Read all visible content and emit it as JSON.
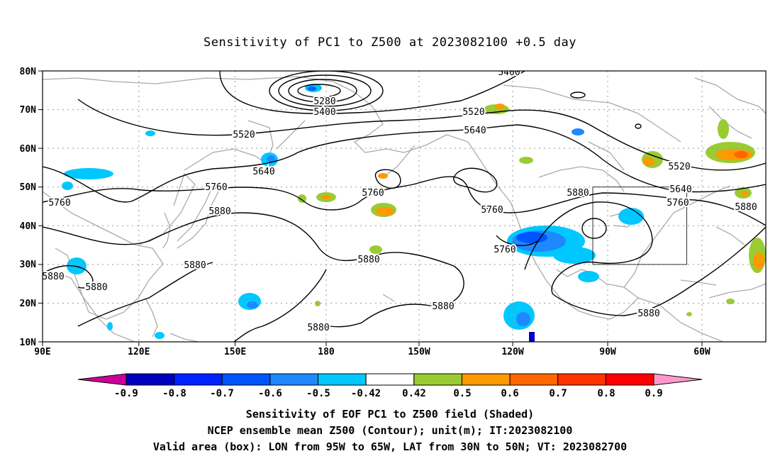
{
  "title": "Sensitivity of PC1 to Z500 at 2023082100 +0.5 day",
  "map": {
    "lat_labels": [
      "80N",
      "70N",
      "60N",
      "50N",
      "40N",
      "30N",
      "20N",
      "10N"
    ],
    "lon_labels": [
      "90E",
      "120E",
      "150E",
      "180",
      "150W",
      "120W",
      "90W",
      "60W"
    ],
    "contour_labels": [
      "5280",
      "5400",
      "5400",
      "5520",
      "5520",
      "5520",
      "5640",
      "5640",
      "5640",
      "5760",
      "5760",
      "5760",
      "5760",
      "5760",
      "5760",
      "5880",
      "5880",
      "5880",
      "5880",
      "5880",
      "5880",
      "5880",
      "5880",
      "5880",
      "5880"
    ],
    "valid_box": {
      "lon_from": "95W",
      "lon_to": "65W",
      "lat_from": "30N",
      "lat_to": "50N"
    }
  },
  "colorbar": {
    "labels": [
      "-0.9",
      "-0.8",
      "-0.7",
      "-0.6",
      "-0.5",
      "-0.42",
      "0.42",
      "0.5",
      "0.6",
      "0.7",
      "0.8",
      "0.9"
    ],
    "colors": [
      "#0000bf",
      "#0022ff",
      "#0055ff",
      "#1e88ff",
      "#00c8ff",
      "#ffffff",
      "#99cc33",
      "#ff9900",
      "#ff6600",
      "#ff3300",
      "#ff0000"
    ],
    "low_extend_color": "#cc0099",
    "high_extend_color": "#ff99cc"
  },
  "captions": {
    "line1": "Sensitivity of EOF PC1 to Z500 field (Shaded)",
    "line2": "NCEP ensemble mean Z500 (Contour); unit(m); IT:2023082100",
    "line3": "Valid area (box): LON from 95W to 65W, LAT from 30N to 50N; VT: 2023082700"
  }
}
